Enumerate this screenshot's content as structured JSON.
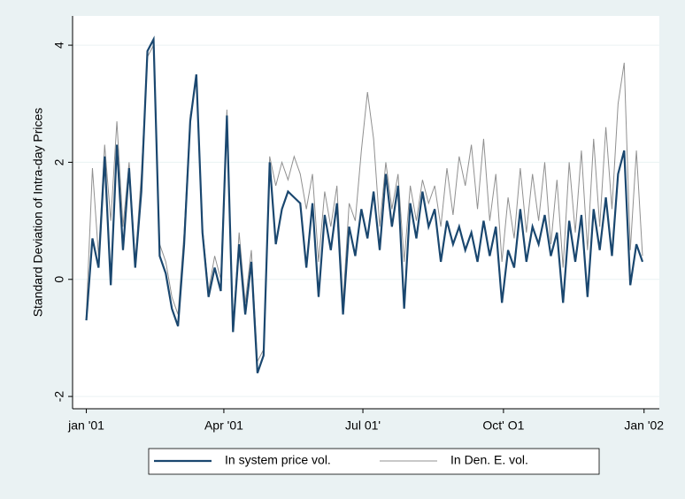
{
  "chart_data": {
    "type": "line",
    "y_label": "Standard Deviation of Intra-day Prices",
    "x": [
      0,
      4,
      8,
      12,
      16,
      20,
      24,
      28,
      32,
      36,
      40,
      44,
      48,
      52,
      56,
      60,
      64,
      68,
      72,
      76,
      80,
      84,
      88,
      92,
      96,
      100,
      104,
      108,
      112,
      116,
      120,
      124,
      128,
      132,
      136,
      140,
      144,
      148,
      152,
      156,
      160,
      164,
      168,
      172,
      176,
      180,
      184,
      188,
      192,
      196,
      200,
      204,
      208,
      212,
      216,
      220,
      224,
      228,
      232,
      236,
      240,
      244,
      248,
      252,
      256,
      260,
      264,
      268,
      272,
      276,
      280,
      284,
      288,
      292,
      296,
      300,
      304,
      308,
      312,
      316,
      320,
      324,
      328,
      332,
      336,
      340,
      344,
      348,
      352,
      356,
      360,
      364
    ],
    "series": [
      {
        "name": "In system price vol.",
        "color": "#1a476f",
        "values": [
          -0.7,
          0.7,
          0.2,
          2.1,
          -0.1,
          2.3,
          0.5,
          1.9,
          0.2,
          1.5,
          3.9,
          4.1,
          0.4,
          0.1,
          -0.5,
          -0.8,
          0.6,
          2.7,
          3.5,
          0.8,
          -0.3,
          0.2,
          -0.2,
          2.8,
          -0.9,
          0.6,
          -0.6,
          0.3,
          -1.6,
          -1.3,
          2.0,
          0.6,
          1.2,
          1.5,
          1.4,
          1.3,
          0.2,
          1.3,
          -0.3,
          1.1,
          0.5,
          1.3,
          -0.6,
          0.9,
          0.4,
          1.2,
          0.7,
          1.5,
          0.5,
          1.8,
          0.9,
          1.6,
          -0.5,
          1.3,
          0.7,
          1.5,
          0.9,
          1.2,
          0.3,
          1.0,
          0.6,
          0.9,
          0.5,
          0.8,
          0.3,
          1.0,
          0.4,
          0.9,
          -0.4,
          0.5,
          0.2,
          1.2,
          0.3,
          0.9,
          0.6,
          1.1,
          0.4,
          0.8,
          -0.4,
          1.0,
          0.3,
          1.1,
          -0.3,
          1.2,
          0.5,
          1.4,
          0.4,
          1.8,
          2.2,
          -0.1,
          0.6,
          0.3
        ]
      },
      {
        "name": "In Den. E. vol.",
        "color": "#909090",
        "values": [
          -0.6,
          1.9,
          0.4,
          2.3,
          1.0,
          2.7,
          0.9,
          2.0,
          0.3,
          1.8,
          3.8,
          4.0,
          0.6,
          0.3,
          -0.3,
          -0.6,
          0.8,
          2.8,
          3.4,
          0.9,
          -0.2,
          0.4,
          0.0,
          2.9,
          -0.8,
          0.8,
          -0.4,
          0.5,
          -1.4,
          -1.2,
          2.1,
          1.6,
          2.0,
          1.7,
          2.1,
          1.8,
          1.2,
          1.8,
          0.3,
          1.5,
          0.9,
          1.6,
          -0.4,
          1.3,
          1.0,
          2.2,
          3.2,
          2.4,
          0.9,
          2.0,
          1.2,
          1.8,
          0.3,
          1.6,
          1.0,
          1.7,
          1.3,
          1.6,
          0.9,
          1.9,
          1.1,
          2.1,
          1.6,
          2.3,
          1.2,
          2.4,
          1.0,
          1.8,
          0.3,
          1.4,
          0.7,
          1.9,
          0.8,
          1.8,
          1.0,
          2.0,
          0.6,
          1.7,
          0.2,
          2.0,
          0.8,
          2.2,
          0.5,
          2.4,
          0.9,
          2.6,
          1.2,
          3.0,
          3.7,
          0.5,
          2.2,
          0.4
        ]
      }
    ],
    "xlim": [
      -9,
      375
    ],
    "xticks": [
      {
        "value": 0,
        "label": "jan '01"
      },
      {
        "value": 90,
        "label": "Apr '01"
      },
      {
        "value": 181,
        "label": "Jul 01'"
      },
      {
        "value": 273,
        "label": "Oct' O1"
      },
      {
        "value": 365,
        "label": "Jan '02"
      }
    ],
    "ylim": [
      -2.21,
      4.5
    ],
    "yticks": [
      -2,
      0,
      2,
      4
    ],
    "grid": true,
    "legend": "bottom"
  }
}
